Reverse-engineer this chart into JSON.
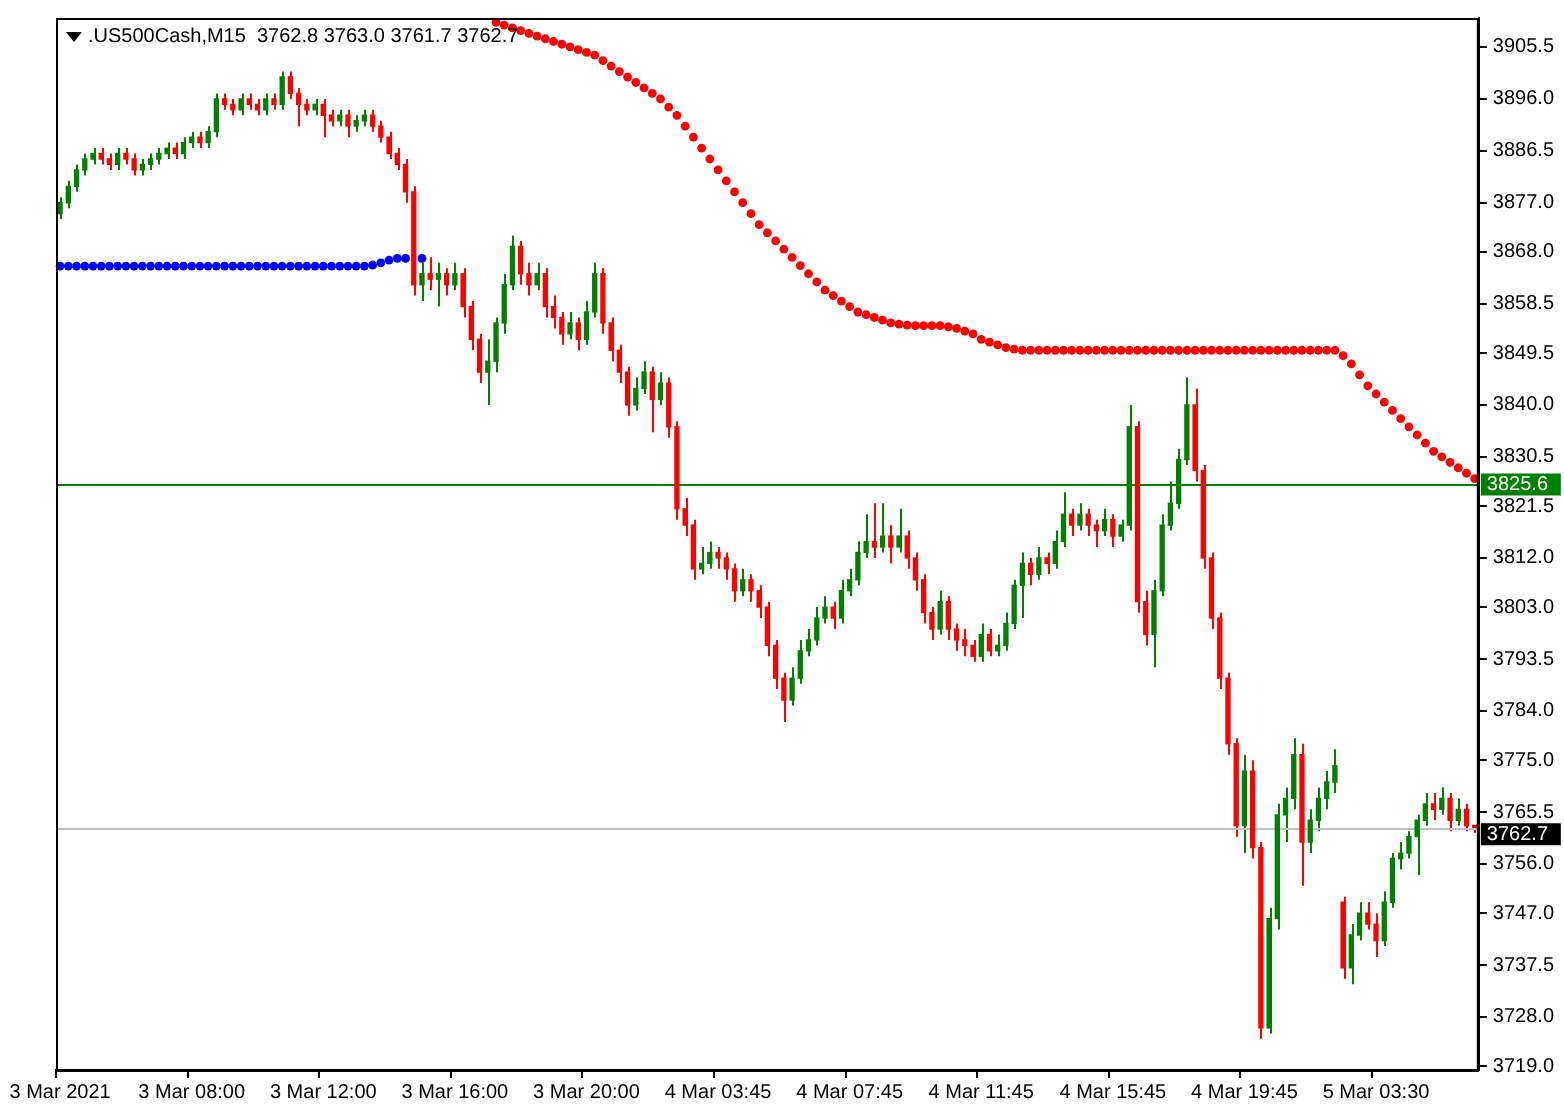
{
  "chart_data": {
    "type": "candlestick",
    "title": ".US500Cash,M15  3762.8 3763.0 3761.7 3762.7",
    "categories": [
      "3 Mar 2021",
      null,
      null,
      null,
      null,
      null,
      null,
      null,
      null,
      null,
      null,
      null,
      null,
      null,
      null,
      null,
      "3 Mar 08:00",
      null,
      null,
      null,
      null,
      null,
      null,
      null,
      null,
      null,
      null,
      null,
      null,
      null,
      null,
      null,
      "3 Mar 12:00",
      null,
      null,
      null,
      null,
      null,
      null,
      null,
      null,
      null,
      null,
      null,
      null,
      null,
      null,
      null,
      "3 Mar 16:00",
      null,
      null,
      null,
      null,
      null,
      null,
      null,
      null,
      null,
      null,
      null,
      null,
      null,
      null,
      null,
      "3 Mar 20:00",
      null,
      null,
      null,
      null,
      null,
      null,
      null,
      null,
      null,
      null,
      null,
      null,
      null,
      null,
      null,
      "4 Mar 03:45",
      null,
      null,
      null,
      null,
      null,
      null,
      null,
      null,
      null,
      null,
      null,
      null,
      null,
      null,
      null,
      "4 Mar 07:45",
      null,
      null,
      null,
      null,
      null,
      null,
      null,
      null,
      null,
      null,
      null,
      null,
      null,
      null,
      null,
      "4 Mar 11:45",
      null,
      null,
      null,
      null,
      null,
      null,
      null,
      null,
      null,
      null,
      null,
      null,
      null,
      null,
      null,
      "4 Mar 15:45",
      null,
      null,
      null,
      null,
      null,
      null,
      null,
      null,
      null,
      null,
      null,
      null,
      null,
      null,
      null,
      "4 Mar 19:45",
      null,
      null,
      null,
      null,
      null,
      null,
      null,
      null,
      null,
      null,
      null,
      null,
      null,
      null,
      null,
      "5 Mar 03:30",
      null,
      null,
      null,
      null,
      null,
      null,
      null,
      null,
      null,
      null,
      null,
      null
    ],
    "ohlc": [
      [
        3875,
        3878,
        3874,
        3877
      ],
      [
        3877,
        3881,
        3876,
        3880
      ],
      [
        3880,
        3884,
        3879,
        3883
      ],
      [
        3883,
        3886,
        3882,
        3885
      ],
      [
        3885,
        3887,
        3884,
        3886
      ],
      [
        3886,
        3887,
        3884,
        3885
      ],
      [
        3885,
        3886,
        3883,
        3884
      ],
      [
        3884,
        3887,
        3883,
        3886
      ],
      [
        3886,
        3887,
        3884,
        3885
      ],
      [
        3885,
        3886,
        3882,
        3883
      ],
      [
        3883,
        3885,
        3882,
        3884
      ],
      [
        3884,
        3886,
        3883,
        3885
      ],
      [
        3885,
        3887,
        3884,
        3886
      ],
      [
        3886,
        3888,
        3885,
        3887
      ],
      [
        3887,
        3888,
        3885,
        3886
      ],
      [
        3886,
        3889,
        3885,
        3888
      ],
      [
        3888,
        3890,
        3887,
        3889
      ],
      [
        3889,
        3890,
        3887,
        3888
      ],
      [
        3888,
        3891,
        3887,
        3890
      ],
      [
        3890,
        3897,
        3889,
        3896
      ],
      [
        3896,
        3897,
        3894,
        3895
      ],
      [
        3895,
        3896,
        3893,
        3894
      ],
      [
        3894,
        3897,
        3893,
        3896
      ],
      [
        3896,
        3897,
        3894,
        3895
      ],
      [
        3895,
        3896,
        3893,
        3894
      ],
      [
        3894,
        3897,
        3893,
        3896
      ],
      [
        3896,
        3897,
        3894,
        3895
      ],
      [
        3895,
        3901,
        3894,
        3900
      ],
      [
        3900,
        3901,
        3896,
        3897
      ],
      [
        3897,
        3898,
        3891,
        3895
      ],
      [
        3895,
        3896,
        3893,
        3894
      ],
      [
        3894,
        3896,
        3893,
        3895
      ],
      [
        3895,
        3896,
        3889,
        3893
      ],
      [
        3893,
        3894,
        3891,
        3892
      ],
      [
        3892,
        3894,
        3891,
        3893
      ],
      [
        3893,
        3894,
        3889,
        3891
      ],
      [
        3891,
        3893,
        3890,
        3892
      ],
      [
        3892,
        3894,
        3891,
        3893
      ],
      [
        3893,
        3894,
        3890,
        3891
      ],
      [
        3891,
        3892,
        3888,
        3889
      ],
      [
        3889,
        3890,
        3885,
        3886
      ],
      [
        3886,
        3887,
        3883,
        3884
      ],
      [
        3884,
        3885,
        3877,
        3879
      ],
      [
        3879,
        3880,
        3860,
        3862
      ],
      [
        3862,
        3866,
        3859,
        3864
      ],
      [
        3864,
        3867,
        3861,
        3863
      ],
      [
        3863,
        3866,
        3858,
        3864
      ],
      [
        3864,
        3865,
        3860,
        3862
      ],
      [
        3862,
        3866,
        3861,
        3864
      ],
      [
        3864,
        3865,
        3856,
        3858
      ],
      [
        3858,
        3859,
        3850,
        3852
      ],
      [
        3852,
        3853,
        3844,
        3846
      ],
      [
        3846,
        3852,
        3840,
        3848
      ],
      [
        3848,
        3856,
        3846,
        3855
      ],
      [
        3855,
        3864,
        3853,
        3862
      ],
      [
        3862,
        3871,
        3861,
        3869
      ],
      [
        3869,
        3870,
        3862,
        3864
      ],
      [
        3864,
        3866,
        3860,
        3862
      ],
      [
        3862,
        3866,
        3861,
        3864
      ],
      [
        3864,
        3865,
        3856,
        3858
      ],
      [
        3858,
        3860,
        3854,
        3856
      ],
      [
        3856,
        3857,
        3851,
        3853
      ],
      [
        3853,
        3857,
        3852,
        3855
      ],
      [
        3855,
        3856,
        3850,
        3852
      ],
      [
        3852,
        3859,
        3851,
        3857
      ],
      [
        3857,
        3866,
        3856,
        3864
      ],
      [
        3864,
        3865,
        3853,
        3855
      ],
      [
        3855,
        3856,
        3848,
        3850
      ],
      [
        3850,
        3851,
        3844,
        3846
      ],
      [
        3846,
        3847,
        3838,
        3840
      ],
      [
        3840,
        3845,
        3839,
        3843
      ],
      [
        3843,
        3848,
        3842,
        3846
      ],
      [
        3846,
        3847,
        3835,
        3841
      ],
      [
        3841,
        3846,
        3840,
        3844
      ],
      [
        3844,
        3845,
        3834,
        3836
      ],
      [
        3836,
        3837,
        3819,
        3821
      ],
      [
        3821,
        3823,
        3816,
        3818
      ],
      [
        3818,
        3819,
        3808,
        3810
      ],
      [
        3810,
        3814,
        3809,
        3811
      ],
      [
        3811,
        3815,
        3810,
        3813
      ],
      [
        3813,
        3814,
        3810,
        3812
      ],
      [
        3812,
        3813,
        3808,
        3810
      ],
      [
        3810,
        3811,
        3804,
        3806
      ],
      [
        3806,
        3810,
        3805,
        3808
      ],
      [
        3808,
        3809,
        3804,
        3806
      ],
      [
        3806,
        3807,
        3801,
        3803
      ],
      [
        3803,
        3804,
        3794,
        3796
      ],
      [
        3796,
        3797,
        3788,
        3790
      ],
      [
        3790,
        3791,
        3782,
        3786
      ],
      [
        3786,
        3792,
        3785,
        3790
      ],
      [
        3790,
        3797,
        3789,
        3795
      ],
      [
        3795,
        3799,
        3794,
        3797
      ],
      [
        3797,
        3803,
        3796,
        3801
      ],
      [
        3801,
        3805,
        3800,
        3803
      ],
      [
        3803,
        3804,
        3799,
        3801
      ],
      [
        3801,
        3808,
        3800,
        3806
      ],
      [
        3806,
        3810,
        3805,
        3808
      ],
      [
        3808,
        3815,
        3807,
        3813
      ],
      [
        3813,
        3820,
        3812,
        3815
      ],
      [
        3815,
        3822,
        3812,
        3814
      ],
      [
        3814,
        3822,
        3813,
        3816
      ],
      [
        3816,
        3818,
        3811,
        3814
      ],
      [
        3814,
        3821,
        3813,
        3816
      ],
      [
        3816,
        3817,
        3810,
        3812
      ],
      [
        3812,
        3813,
        3806,
        3808
      ],
      [
        3808,
        3809,
        3800,
        3802
      ],
      [
        3802,
        3803,
        3797,
        3799
      ],
      [
        3799,
        3806,
        3798,
        3804
      ],
      [
        3804,
        3805,
        3797,
        3799
      ],
      [
        3799,
        3800,
        3795,
        3797
      ],
      [
        3797,
        3799,
        3794,
        3796
      ],
      [
        3796,
        3797,
        3793,
        3794
      ],
      [
        3794,
        3800,
        3793,
        3798
      ],
      [
        3798,
        3799,
        3794,
        3795
      ],
      [
        3795,
        3798,
        3794,
        3796
      ],
      [
        3796,
        3802,
        3795,
        3800
      ],
      [
        3800,
        3808,
        3799,
        3807
      ],
      [
        3807,
        3813,
        3801,
        3811
      ],
      [
        3811,
        3812,
        3807,
        3809
      ],
      [
        3809,
        3814,
        3808,
        3812
      ],
      [
        3812,
        3813,
        3809,
        3811
      ],
      [
        3811,
        3817,
        3810,
        3815
      ],
      [
        3815,
        3824,
        3814,
        3820
      ],
      [
        3820,
        3821,
        3816,
        3818
      ],
      [
        3818,
        3822,
        3817,
        3820
      ],
      [
        3820,
        3821,
        3816,
        3818
      ],
      [
        3818,
        3819,
        3814,
        3817
      ],
      [
        3817,
        3821,
        3816,
        3819
      ],
      [
        3819,
        3820,
        3814,
        3816
      ],
      [
        3816,
        3819,
        3815,
        3818
      ],
      [
        3818,
        3840,
        3817,
        3836
      ],
      [
        3836,
        3837,
        3802,
        3804
      ],
      [
        3804,
        3806,
        3796,
        3798
      ],
      [
        3798,
        3808,
        3792,
        3806
      ],
      [
        3806,
        3820,
        3805,
        3818
      ],
      [
        3818,
        3826,
        3817,
        3822
      ],
      [
        3822,
        3832,
        3821,
        3830
      ],
      [
        3830,
        3845,
        3829,
        3840
      ],
      [
        3840,
        3843,
        3826,
        3828
      ],
      [
        3828,
        3829,
        3810,
        3812
      ],
      [
        3812,
        3813,
        3799,
        3801
      ],
      [
        3801,
        3802,
        3788,
        3790
      ],
      [
        3790,
        3791,
        3776,
        3778
      ],
      [
        3778,
        3779,
        3761,
        3763
      ],
      [
        3763,
        3776,
        3758,
        3773
      ],
      [
        3773,
        3775,
        3757,
        3759
      ],
      [
        3759,
        3760,
        3724,
        3726
      ],
      [
        3726,
        3748,
        3725,
        3746
      ],
      [
        3746,
        3767,
        3744,
        3765
      ],
      [
        3765,
        3770,
        3760,
        3768
      ],
      [
        3768,
        3779,
        3766,
        3776
      ],
      [
        3776,
        3778,
        3752,
        3760
      ],
      [
        3760,
        3766,
        3758,
        3764
      ],
      [
        3764,
        3770,
        3762,
        3768
      ],
      [
        3768,
        3773,
        3766,
        3771
      ],
      [
        3771,
        3777,
        3769,
        3774
      ],
      [
        3749,
        3750,
        3735,
        3737
      ],
      [
        3737,
        3745,
        3734,
        3743
      ],
      [
        3743,
        3749,
        3742,
        3747
      ],
      [
        3747,
        3749,
        3744,
        3745
      ],
      [
        3745,
        3747,
        3739,
        3742
      ],
      [
        3742,
        3751,
        3741,
        3749
      ],
      [
        3749,
        3758,
        3748,
        3757
      ],
      [
        3757,
        3760,
        3755,
        3758
      ],
      [
        3758,
        3762,
        3757,
        3761
      ],
      [
        3761,
        3765,
        3754,
        3764
      ],
      [
        3764,
        3769,
        3763,
        3767
      ],
      [
        3767,
        3769,
        3764,
        3766
      ],
      [
        3766,
        3770,
        3765,
        3768
      ],
      [
        3768,
        3769,
        3762,
        3764
      ],
      [
        3764,
        3768,
        3763,
        3766
      ],
      [
        3766,
        3767,
        3762,
        3763
      ],
      [
        3762.8,
        3763.0,
        3761.7,
        3762.7
      ]
    ],
    "series": [
      {
        "type": "scatter",
        "color": "#ff0000",
        "marker": "circle",
        "values": [
          null,
          null,
          null,
          null,
          null,
          null,
          null,
          null,
          null,
          null,
          null,
          null,
          null,
          null,
          null,
          null,
          null,
          null,
          null,
          null,
          null,
          null,
          null,
          null,
          null,
          null,
          null,
          null,
          null,
          null,
          null,
          null,
          null,
          null,
          null,
          null,
          null,
          null,
          null,
          null,
          null,
          null,
          null,
          null,
          null,
          null,
          null,
          null,
          null,
          null,
          null,
          null,
          null,
          3910,
          3909.5,
          3909,
          3908.5,
          3908,
          3907.5,
          3907,
          3906.5,
          3906,
          3905.5,
          3905,
          3904.5,
          3904,
          3903,
          3902,
          3901,
          3900,
          3899,
          3898,
          3897,
          3896,
          3894.5,
          3893,
          3891,
          3889,
          3887,
          3885,
          3883,
          3881,
          3879,
          3877,
          3875,
          3873,
          3871.5,
          3870,
          3868.5,
          3867,
          3865.5,
          3864,
          3862.5,
          3861,
          3860,
          3859,
          3858,
          3857,
          3856.5,
          3856,
          3855.5,
          3855,
          3854.8,
          3854.6,
          3854.5,
          3854.5,
          3854.5,
          3854.5,
          3854.3,
          3854,
          3853.5,
          3853,
          3852,
          3851.5,
          3851,
          3850.5,
          3850.2,
          3850,
          3850,
          3850,
          3850,
          3850,
          3850,
          3850,
          3850,
          3850,
          3850,
          3850,
          3850,
          3850,
          3850,
          3850,
          3850,
          3850,
          3850,
          3850,
          3850,
          3850,
          3850,
          3850,
          3850,
          3850,
          3850,
          3850,
          3850,
          3850,
          3850,
          3850,
          3850,
          3850,
          3850,
          3850,
          3850,
          3850,
          3850,
          3850,
          3849,
          3847.5,
          3845.5,
          3843.5,
          3842,
          3840.5,
          3839,
          3837.5,
          3836,
          3834.5,
          3833,
          3831.5,
          3830.5,
          3829.5,
          3828.5,
          3827.5,
          3826.5
        ]
      },
      {
        "type": "scatter",
        "color": "#0000ff",
        "marker": "circle",
        "values": [
          3865.4,
          3865.4,
          3865.4,
          3865.4,
          3865.4,
          3865.4,
          3865.4,
          3865.4,
          3865.4,
          3865.4,
          3865.4,
          3865.4,
          3865.4,
          3865.4,
          3865.4,
          3865.4,
          3865.4,
          3865.4,
          3865.4,
          3865.4,
          3865.4,
          3865.4,
          3865.4,
          3865.4,
          3865.4,
          3865.4,
          3865.4,
          3865.4,
          3865.4,
          3865.4,
          3865.4,
          3865.4,
          3865.4,
          3865.4,
          3865.4,
          3865.4,
          3865.4,
          3865.4,
          3865.6,
          3866,
          3866.5,
          3866.8,
          3866.8,
          null,
          3866.8,
          null,
          null,
          null,
          null,
          null,
          null,
          null,
          null,
          null,
          null,
          null,
          null,
          null,
          null,
          null,
          null,
          null,
          null,
          null,
          null,
          null,
          null,
          null,
          null,
          null,
          null,
          null,
          null,
          null,
          null,
          null,
          null,
          null,
          null,
          null,
          null,
          null,
          null,
          null,
          null,
          null,
          null,
          null,
          null,
          null,
          null,
          null,
          null,
          null,
          null,
          null,
          null,
          null,
          null,
          null,
          null,
          null,
          null,
          null,
          null,
          null,
          null,
          null,
          null,
          null,
          null,
          null,
          null,
          null,
          null,
          null,
          null,
          null,
          null,
          null,
          null,
          null,
          null,
          null,
          null,
          null,
          null,
          null,
          null,
          null,
          null,
          null,
          null,
          null,
          null,
          null,
          null,
          null,
          null,
          null,
          null,
          null,
          null,
          null,
          null,
          null,
          null,
          null,
          null,
          null,
          null,
          null,
          null,
          null,
          null,
          null,
          null,
          null,
          null,
          null,
          null,
          null,
          null,
          null,
          null,
          null,
          null,
          null,
          null,
          null,
          null,
          null,
          null
        ]
      }
    ],
    "ylim": [
      3718.3,
      3910.8
    ],
    "yticks": [
      3905.5,
      {
        "value": 3896,
        "label": "3896.0"
      },
      3886.5,
      {
        "value": 3877,
        "label": "3877.0"
      },
      {
        "value": 3868,
        "label": "3868.0"
      },
      3858.5,
      3849.5,
      {
        "value": 3840,
        "label": "3840.0"
      },
      3830.5,
      3821.5,
      {
        "value": 3812,
        "label": "3812.0"
      },
      {
        "value": 3803,
        "label": "3803.0"
      },
      3793.5,
      {
        "value": 3784,
        "label": "3784.0"
      },
      {
        "value": 3775,
        "label": "3775.0"
      },
      3765.5,
      {
        "value": 3756,
        "label": "3756.0"
      },
      {
        "value": 3747,
        "label": "3747.0"
      },
      3737.5,
      {
        "value": 3728,
        "label": "3728.0"
      },
      {
        "value": 3719,
        "label": "3719.0"
      }
    ],
    "ref_lines": [
      {
        "axis": "y",
        "value": 3825.6,
        "label": "3825.6",
        "color": "#008000"
      },
      {
        "axis": "y",
        "value": 3762.7,
        "label": "3762.7",
        "color": "#c0c0c0"
      }
    ]
  }
}
